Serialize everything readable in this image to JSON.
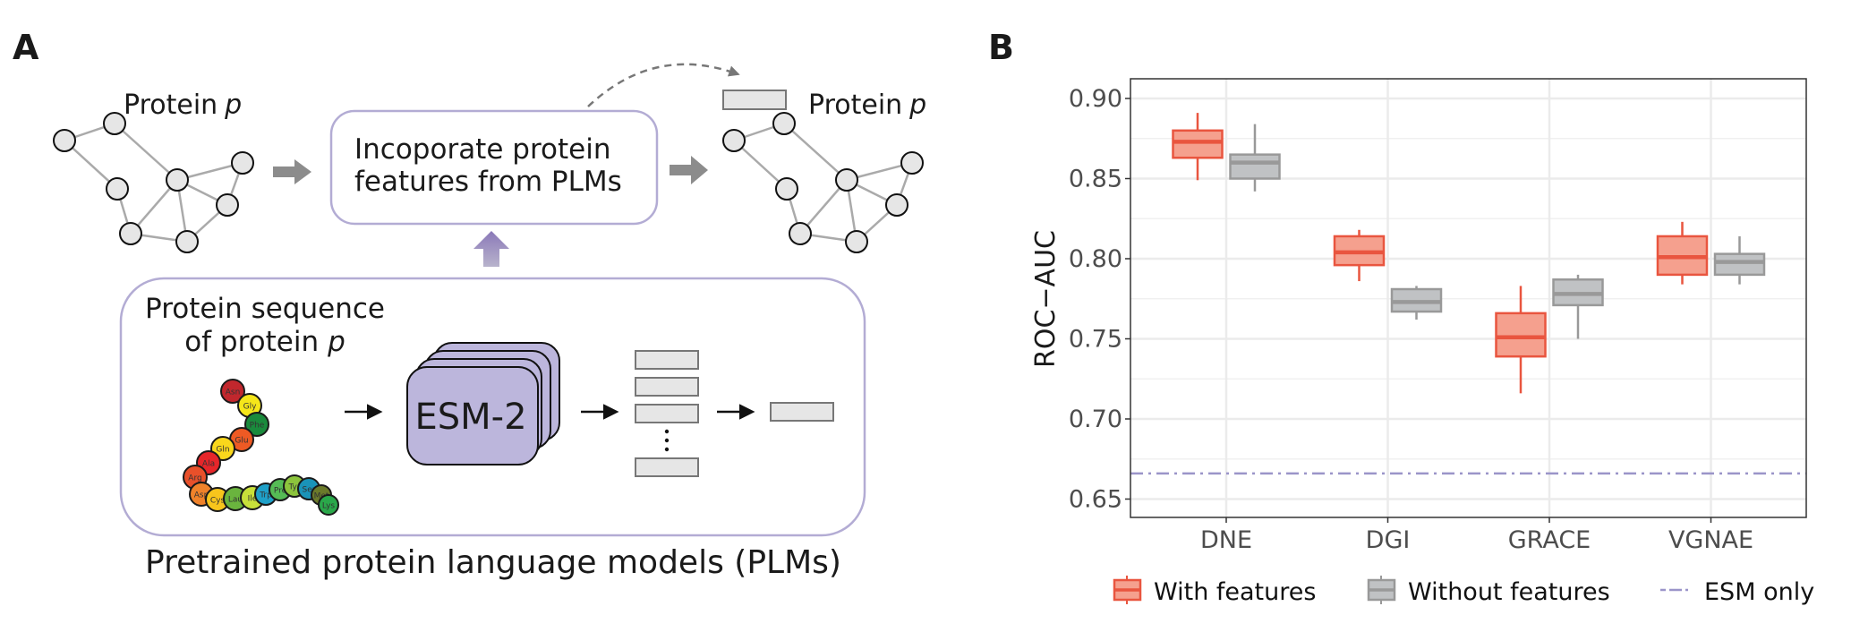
{
  "panel_a": {
    "label": "A",
    "graph_before": {
      "label": "Protein",
      "var": "p"
    },
    "graph_after": {
      "label": "Protein",
      "var": "p"
    },
    "incorporate_box": {
      "lines": [
        "Incoporate protein",
        "features from PLMs"
      ]
    },
    "sequence_label": {
      "line1": "Protein sequence",
      "line2_prefix": "of protein",
      "var": "p"
    },
    "amino_acids": [
      {
        "name": "Asn",
        "color": "#c1272d"
      },
      {
        "name": "Gly",
        "color": "#f5e61a"
      },
      {
        "name": "Phe",
        "color": "#1a8a3c"
      },
      {
        "name": "Glu",
        "color": "#ee5a24"
      },
      {
        "name": "Gln",
        "color": "#f9d71c"
      },
      {
        "name": "Ala",
        "color": "#e6262a"
      },
      {
        "name": "Arg",
        "color": "#e8502a"
      },
      {
        "name": "Asp",
        "color": "#f0822a"
      },
      {
        "name": "Cys",
        "color": "#f7c51c"
      },
      {
        "name": "Lau",
        "color": "#6ab43e"
      },
      {
        "name": "Ile",
        "color": "#c8e03a"
      },
      {
        "name": "Trp",
        "color": "#1fa0c8"
      },
      {
        "name": "Pre",
        "color": "#55bb55"
      },
      {
        "name": "Tyr",
        "color": "#8cc43c"
      },
      {
        "name": "Ser",
        "color": "#1a93b8"
      },
      {
        "name": "Met",
        "color": "#6b7a2a"
      },
      {
        "name": "Lys",
        "color": "#2aa84a"
      }
    ],
    "model_label": "ESM-2",
    "caption": "Pretrained protein language models (PLMs)",
    "colors": {
      "box_border": "#b3acd4",
      "model_fill": "#bcb6dc",
      "up_arrow": "#8a78b8",
      "arrow_gray": "#8c8c8c",
      "node_fill": "#e6e6e6",
      "edge": "#aaaaaa"
    }
  },
  "panel_b": {
    "label": "B"
  },
  "chart_data": {
    "type": "box",
    "title": "",
    "xlabel": "",
    "ylabel": "ROC−AUC",
    "categories": [
      "DNE",
      "DGI",
      "GRACE",
      "VGNAE"
    ],
    "ylim": [
      0.639,
      0.912
    ],
    "yticks": [
      "0.65",
      "0.70",
      "0.75",
      "0.80",
      "0.85",
      "0.90"
    ],
    "grid": true,
    "legend_position": "bottom",
    "series": [
      {
        "name": "With features",
        "fill": "#f5a08e",
        "stroke": "#e9553f",
        "stats": [
          {
            "min": 0.849,
            "q1": 0.863,
            "median": 0.873,
            "q3": 0.88,
            "max": 0.891
          },
          {
            "min": 0.786,
            "q1": 0.796,
            "median": 0.804,
            "q3": 0.814,
            "max": 0.818
          },
          {
            "min": 0.716,
            "q1": 0.739,
            "median": 0.751,
            "q3": 0.766,
            "max": 0.783
          },
          {
            "min": 0.784,
            "q1": 0.79,
            "median": 0.801,
            "q3": 0.814,
            "max": 0.823
          }
        ]
      },
      {
        "name": "Without features",
        "fill": "#c0c2c4",
        "stroke": "#999999",
        "stats": [
          {
            "min": 0.842,
            "q1": 0.85,
            "median": 0.86,
            "q3": 0.865,
            "max": 0.884
          },
          {
            "min": 0.762,
            "q1": 0.767,
            "median": 0.773,
            "q3": 0.781,
            "max": 0.783
          },
          {
            "min": 0.75,
            "q1": 0.771,
            "median": 0.778,
            "q3": 0.787,
            "max": 0.79
          },
          {
            "min": 0.784,
            "q1": 0.79,
            "median": 0.798,
            "q3": 0.803,
            "max": 0.814
          }
        ]
      }
    ],
    "reference_line": {
      "name": "ESM only",
      "value": 0.666,
      "color": "#9b95c9",
      "style": "dash-dot"
    }
  }
}
